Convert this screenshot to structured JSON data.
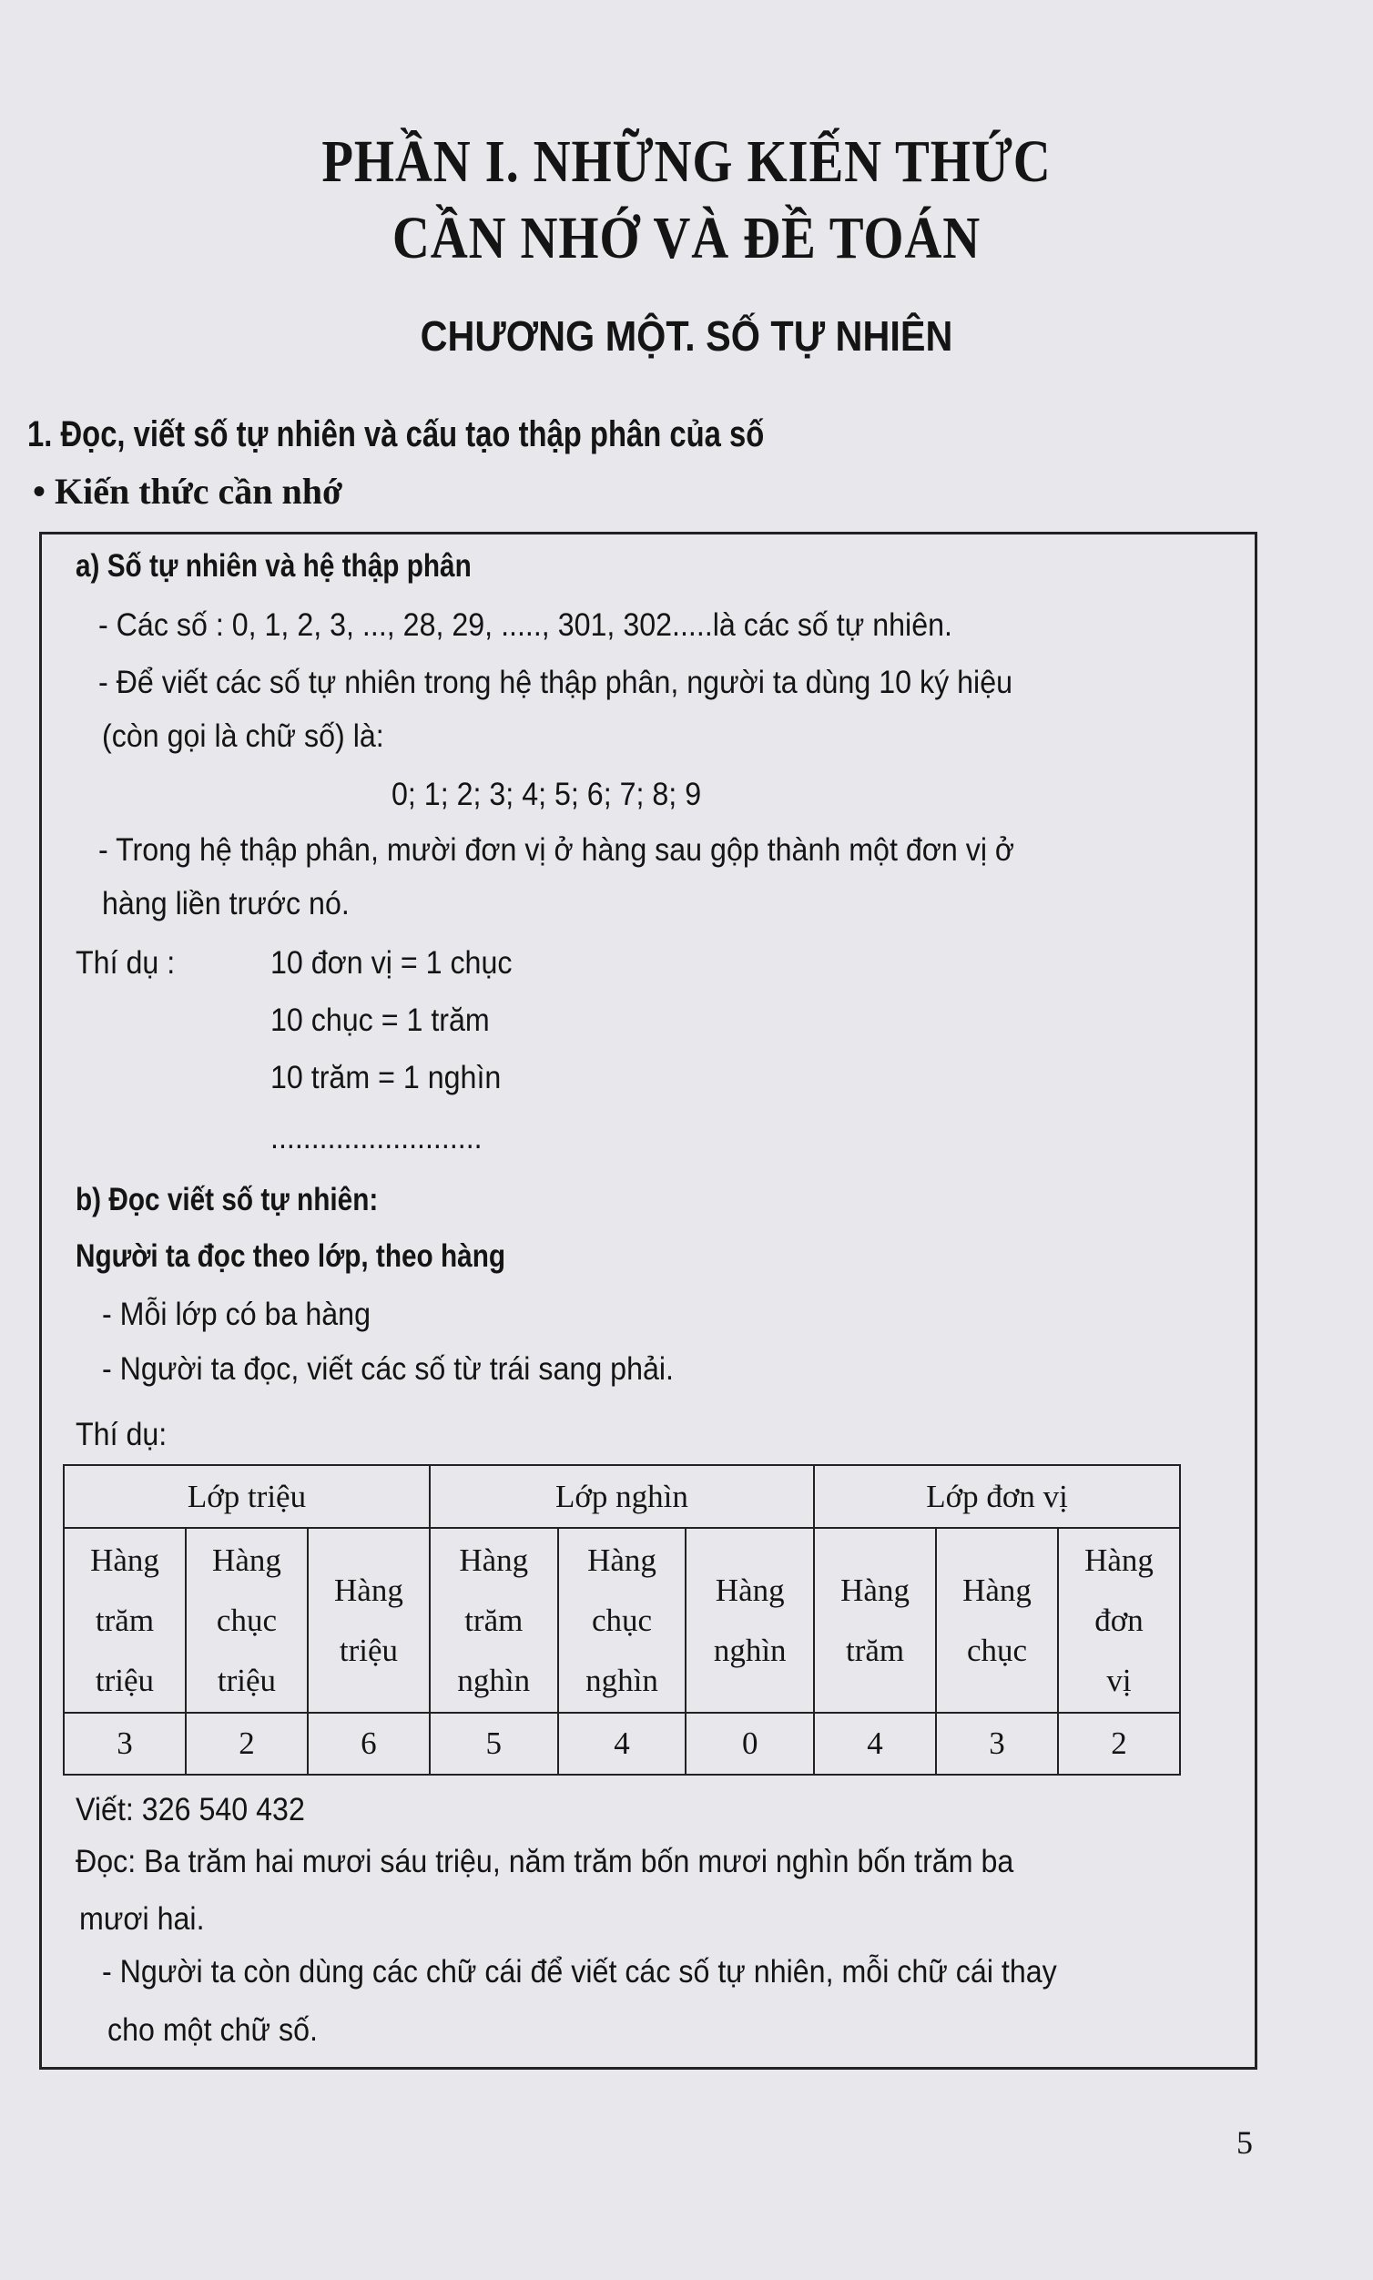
{
  "title_line1": "PHẦN I. NHỮNG KIẾN THỨC",
  "title_line2": "CẦN NHỚ VÀ ĐỀ TOÁN",
  "chapter": "CHƯƠNG MỘT. SỐ TỰ NHIÊN",
  "section": "1. Đọc, viết số tự nhiên và cấu tạo thập phân của số",
  "bullet": "• Kiến thức cần nhớ",
  "box": {
    "a_heading": "a) Số tự nhiên và hệ thập phân",
    "a1": "- Các số : 0, 1, 2, 3, ..., 28, 29, ....., 301, 302.....là các số tự nhiên.",
    "a2_1": "- Để viết các số tự nhiên trong hệ thập phân, người ta dùng 10 ký hiệu",
    "a2_2": "(còn gọi là chữ số) là:",
    "digits": "0; 1; 2; 3; 4; 5; 6; 7; 8; 9",
    "a3_1": "- Trong hệ thập phân, mười đơn vị ở hàng sau gộp thành một đơn vị ở",
    "a3_2": "hàng liền trước nó.",
    "example_label": "Thí dụ :",
    "ex1": "10 đơn vị = 1 chục",
    "ex2": "10 chục = 1 trăm",
    "ex3": "10 trăm = 1 nghìn",
    "dots": "..........................",
    "b_heading": "b) Đọc viết số tự nhiên:",
    "b_sub": "Người ta đọc theo lớp, theo hàng",
    "b1": "- Mỗi lớp có ba hàng",
    "b2": "- Người ta đọc, viết các số từ trái sang phải.",
    "b_example": "Thí dụ:",
    "table": {
      "classes": [
        "Lớp triệu",
        "Lớp nghìn",
        "Lớp đơn vị"
      ],
      "places": [
        [
          "Hàng",
          "trăm",
          "triệu"
        ],
        [
          "Hàng",
          "chục",
          "triệu"
        ],
        [
          "Hàng",
          "triệu"
        ],
        [
          "Hàng",
          "trăm",
          "nghìn"
        ],
        [
          "Hàng",
          "chục",
          "nghìn"
        ],
        [
          "Hàng",
          "nghìn"
        ],
        [
          "Hàng",
          "trăm"
        ],
        [
          "Hàng",
          "chục"
        ],
        [
          "Hàng",
          "đơn",
          "vị"
        ]
      ],
      "digits": [
        "3",
        "2",
        "6",
        "5",
        "4",
        "0",
        "4",
        "3",
        "2"
      ]
    },
    "write": "Viết: 326 540 432",
    "read_1": "Đọc: Ba trăm hai mươi sáu triệu, năm trăm bốn mươi nghìn bốn trăm ba",
    "read_2": "mươi hai.",
    "letters_1": "- Người ta còn dùng các chữ cái để viết các số tự nhiên, mỗi chữ cái thay",
    "letters_2": "cho một chữ số."
  },
  "page_number": "5"
}
